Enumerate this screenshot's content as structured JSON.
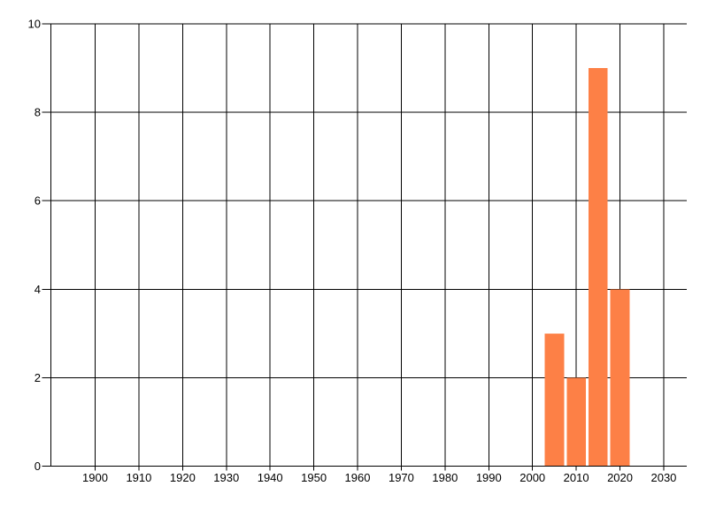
{
  "chart_data": {
    "type": "bar",
    "title": "",
    "xlabel": "",
    "ylabel": "",
    "categories": [
      "2005",
      "2010",
      "2015",
      "2020"
    ],
    "bin_centers": [
      2005,
      2010,
      2015,
      2020
    ],
    "values": [
      3,
      2,
      9,
      4
    ],
    "bar_width_years": 4.4,
    "x_ticks": [
      1900,
      1910,
      1920,
      1930,
      1940,
      1950,
      1960,
      1970,
      1980,
      1990,
      2000,
      2010,
      2020,
      2030
    ],
    "y_ticks": [
      0,
      2,
      4,
      6,
      8,
      10
    ],
    "xlim": [
      1890,
      2035
    ],
    "ylim": [
      0,
      10
    ],
    "grid": true,
    "legend": false,
    "colors": {
      "bar": "#fd8046",
      "grid": "#000000",
      "axis": "#000000",
      "label": "#000000",
      "background": "#ffffff"
    }
  }
}
